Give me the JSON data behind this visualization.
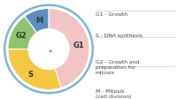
{
  "segments": [
    {
      "label": "G1",
      "value": 0.45,
      "color": "#f2c4c4"
    },
    {
      "label": "S",
      "value": 0.3,
      "color": "#f5c842"
    },
    {
      "label": "G2",
      "value": 0.15,
      "color": "#8cc56e"
    },
    {
      "label": "M",
      "value": 0.1,
      "color": "#5b8fc2"
    }
  ],
  "legend": [
    {
      "text": "G1 - Growth"
    },
    {
      "text": "S - DNA synthesis"
    },
    {
      "text": "G2 - Growth and\npreparation for\nmitosis"
    },
    {
      "text": "M - Mitosis\n(cell division)"
    }
  ],
  "ring_color": "#7ab8d8",
  "bg_color": "#ffffff",
  "text_fontsize": 5.0,
  "legend_fontsize": 4.3,
  "label_fontsize": 6.0
}
